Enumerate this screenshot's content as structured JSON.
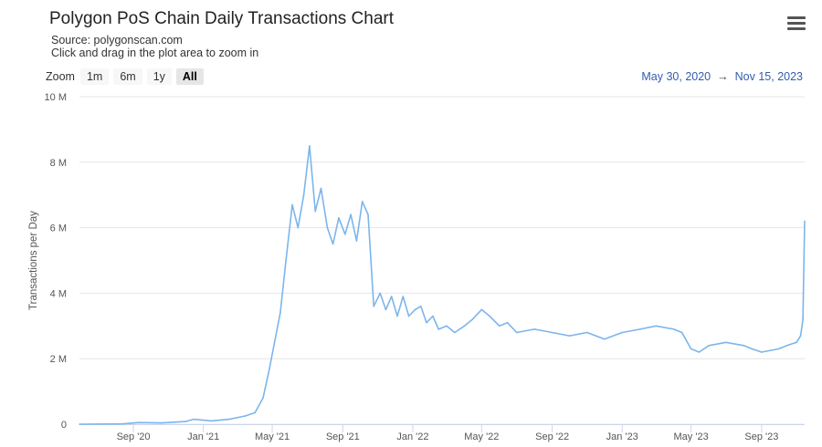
{
  "header": {
    "title": "Polygon PoS Chain Daily Transactions Chart",
    "source": "Source: polygonscan.com",
    "hint": "Click and drag in the plot area to zoom in",
    "menu_icon": "hamburger-menu-icon"
  },
  "zoom": {
    "label": "Zoom",
    "buttons": [
      "1m",
      "6m",
      "1y",
      "All"
    ],
    "active": "All"
  },
  "range": {
    "from": "May 30, 2020",
    "arrow": "→",
    "to": "Nov 15, 2023"
  },
  "colors": {
    "line": "#7cb5ec",
    "grid": "#e6e6e6",
    "range_text": "#335cad"
  },
  "chart_data": {
    "type": "line",
    "title": "Polygon PoS Chain Daily Transactions Chart",
    "subtitle": "Source: polygonscan.com",
    "xlabel": "",
    "ylabel": "Transactions per Day",
    "x_range": [
      "2020-05-30",
      "2023-11-15"
    ],
    "ylim": [
      0,
      10000000
    ],
    "y_ticks": [
      0,
      2000000,
      4000000,
      6000000,
      8000000,
      10000000
    ],
    "y_tick_labels": [
      "0",
      "2 M",
      "4 M",
      "6 M",
      "8 M",
      "10 M"
    ],
    "x_ticks": [
      {
        "date": "2020-09-01",
        "label": "Sep '20"
      },
      {
        "date": "2021-01-01",
        "label": "Jan '21"
      },
      {
        "date": "2021-05-01",
        "label": "May '21"
      },
      {
        "date": "2021-09-01",
        "label": "Sep '21"
      },
      {
        "date": "2022-01-01",
        "label": "Jan '22"
      },
      {
        "date": "2022-05-01",
        "label": "May '22"
      },
      {
        "date": "2022-09-01",
        "label": "Sep '22"
      },
      {
        "date": "2023-01-01",
        "label": "Jan '23"
      },
      {
        "date": "2023-05-01",
        "label": "May '23"
      },
      {
        "date": "2023-09-01",
        "label": "Sep '23"
      }
    ],
    "grid": true,
    "legend": "none",
    "series": [
      {
        "color": "#7cb5ec",
        "points": [
          [
            "2020-05-30",
            0
          ],
          [
            "2020-08-15",
            10000
          ],
          [
            "2020-09-10",
            50000
          ],
          [
            "2020-10-20",
            40000
          ],
          [
            "2020-12-01",
            80000
          ],
          [
            "2020-12-15",
            150000
          ],
          [
            "2021-01-15",
            100000
          ],
          [
            "2021-02-15",
            150000
          ],
          [
            "2021-03-15",
            250000
          ],
          [
            "2021-04-01",
            350000
          ],
          [
            "2021-04-15",
            800000
          ],
          [
            "2021-04-25",
            1600000
          ],
          [
            "2021-05-05",
            2500000
          ],
          [
            "2021-05-15",
            3400000
          ],
          [
            "2021-05-25",
            5000000
          ],
          [
            "2021-06-05",
            6700000
          ],
          [
            "2021-06-15",
            6000000
          ],
          [
            "2021-06-25",
            7000000
          ],
          [
            "2021-07-05",
            8500000
          ],
          [
            "2021-07-15",
            6500000
          ],
          [
            "2021-07-25",
            7200000
          ],
          [
            "2021-08-05",
            6000000
          ],
          [
            "2021-08-15",
            5500000
          ],
          [
            "2021-08-25",
            6300000
          ],
          [
            "2021-09-05",
            5800000
          ],
          [
            "2021-09-15",
            6400000
          ],
          [
            "2021-09-25",
            5600000
          ],
          [
            "2021-10-05",
            6800000
          ],
          [
            "2021-10-15",
            6400000
          ],
          [
            "2021-10-25",
            3600000
          ],
          [
            "2021-11-05",
            4000000
          ],
          [
            "2021-11-15",
            3500000
          ],
          [
            "2021-11-25",
            3900000
          ],
          [
            "2021-12-05",
            3300000
          ],
          [
            "2021-12-15",
            3900000
          ],
          [
            "2021-12-25",
            3300000
          ],
          [
            "2022-01-05",
            3500000
          ],
          [
            "2022-01-15",
            3600000
          ],
          [
            "2022-01-25",
            3100000
          ],
          [
            "2022-02-05",
            3300000
          ],
          [
            "2022-02-15",
            2900000
          ],
          [
            "2022-03-01",
            3000000
          ],
          [
            "2022-03-15",
            2800000
          ],
          [
            "2022-04-01",
            3000000
          ],
          [
            "2022-04-15",
            3200000
          ],
          [
            "2022-05-01",
            3500000
          ],
          [
            "2022-05-15",
            3300000
          ],
          [
            "2022-06-01",
            3000000
          ],
          [
            "2022-06-15",
            3100000
          ],
          [
            "2022-07-01",
            2800000
          ],
          [
            "2022-08-01",
            2900000
          ],
          [
            "2022-09-01",
            2800000
          ],
          [
            "2022-10-01",
            2700000
          ],
          [
            "2022-11-01",
            2800000
          ],
          [
            "2022-12-01",
            2600000
          ],
          [
            "2023-01-01",
            2800000
          ],
          [
            "2023-02-01",
            2900000
          ],
          [
            "2023-03-01",
            3000000
          ],
          [
            "2023-04-01",
            2900000
          ],
          [
            "2023-04-15",
            2800000
          ],
          [
            "2023-05-01",
            2300000
          ],
          [
            "2023-05-15",
            2200000
          ],
          [
            "2023-06-01",
            2400000
          ],
          [
            "2023-07-01",
            2500000
          ],
          [
            "2023-08-01",
            2400000
          ],
          [
            "2023-08-15",
            2300000
          ],
          [
            "2023-09-01",
            2200000
          ],
          [
            "2023-10-01",
            2300000
          ],
          [
            "2023-10-15",
            2400000
          ],
          [
            "2023-11-01",
            2500000
          ],
          [
            "2023-11-08",
            2700000
          ],
          [
            "2023-11-12",
            3200000
          ],
          [
            "2023-11-15",
            6200000
          ]
        ]
      }
    ]
  }
}
